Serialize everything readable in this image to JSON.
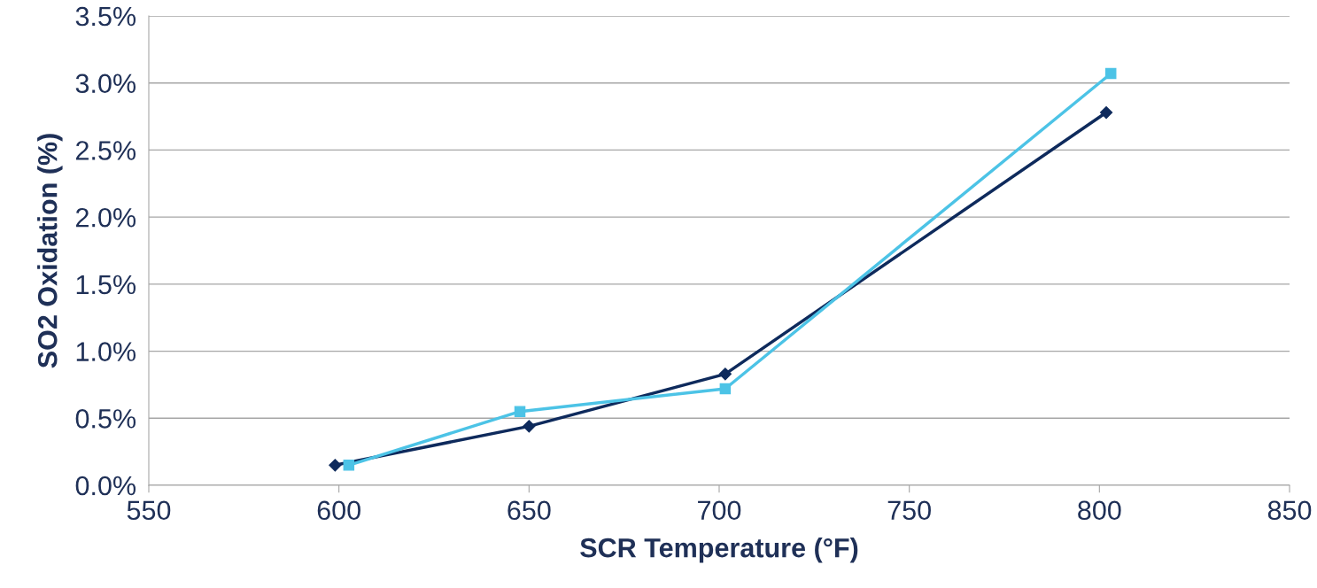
{
  "chart_data": {
    "type": "line",
    "xlabel": "SCR Temperature (°F)",
    "ylabel": "SO2 Oxidation (%)",
    "series": [
      {
        "color": "#0e2a5c",
        "marker": "diamond",
        "x": [
          599,
          650,
          701.6,
          801.8
        ],
        "values": [
          0.15,
          0.44,
          0.83,
          2.78
        ]
      },
      {
        "color": "#4cc3e6",
        "marker": "square",
        "x": [
          602.6,
          647.6,
          701.6,
          803
        ],
        "values": [
          0.15,
          0.55,
          0.72,
          3.07
        ]
      }
    ],
    "line_style": "solid",
    "xlim": [
      550,
      850
    ],
    "xticks": [
      550,
      600,
      650,
      700,
      750,
      800,
      850
    ],
    "ylim": [
      0,
      3.5
    ],
    "yticks": [
      {
        "value": 0,
        "label": "0.0%"
      },
      {
        "value": 0.5,
        "label": "0.5%"
      },
      {
        "value": 1,
        "label": "1.0%"
      },
      {
        "value": 1.5,
        "label": "1.5%"
      },
      {
        "value": 2,
        "label": "2.0%"
      },
      {
        "value": 2.5,
        "label": "2.5%"
      },
      {
        "value": 3,
        "label": "3.0%"
      },
      {
        "value": 3.5,
        "label": "3.5%"
      }
    ],
    "grid": "y",
    "legend": false
  }
}
